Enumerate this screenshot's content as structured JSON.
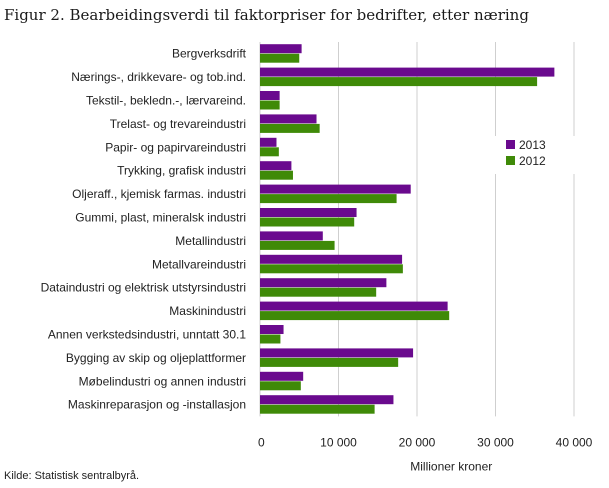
{
  "title": "Figur 2. Bearbeidingsverdi til faktorpriser for bedrifter, etter næring",
  "source": "Kilde: Statistisk sentralbyrå.",
  "colors": {
    "s2013": "#6a0a8e",
    "s2012": "#3f8a08",
    "grid": "#cfcfcf"
  },
  "chart_data": {
    "type": "bar",
    "orientation": "horizontal",
    "categories": [
      "Bergverksdrift",
      "Nærings-, drikkevare- og tob.ind.",
      "Tekstil-, bekledn.-, lærvareind.",
      "Trelast- og trevareindustri",
      "Papir- og papirvareindustri",
      "Trykking, grafisk industri",
      "Oljeraff., kjemisk farmas. industri",
      "Gummi, plast, mineralsk industri",
      "Metallindustri",
      "Metallvareindustri",
      "Dataindustri og elektrisk utstyrsindustri",
      "Maskinindustri",
      "Annen verkstedsindustri, unntatt 30.1",
      "Bygging av skip og oljeplattformer",
      "Møbelindustri og annen industri",
      "Maskinreparasjon og -installasjon"
    ],
    "series": [
      {
        "name": "2013",
        "values": [
          5300,
          37500,
          2500,
          7200,
          2100,
          4000,
          19200,
          12300,
          8000,
          18100,
          16100,
          23900,
          3000,
          19500,
          5500,
          17000
        ]
      },
      {
        "name": "2012",
        "values": [
          5000,
          35300,
          2500,
          7600,
          2400,
          4200,
          17400,
          12000,
          9500,
          18200,
          14800,
          24100,
          2600,
          17600,
          5200,
          14600
        ]
      }
    ],
    "xlim": [
      0,
      40000
    ],
    "xticks": [
      0,
      10000,
      20000,
      30000,
      40000
    ],
    "xtick_labels": [
      "0",
      "10 000",
      "20 000",
      "30 000",
      "40 000"
    ],
    "xlabel": "Millioner  kroner",
    "ylabel": "",
    "grid": "vertical",
    "legend_position": "right"
  }
}
